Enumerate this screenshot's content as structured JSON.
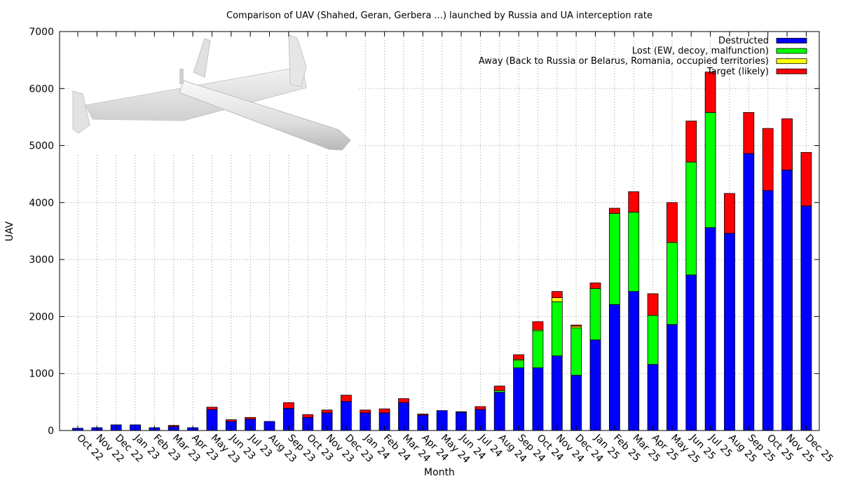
{
  "chart_data": {
    "type": "bar",
    "stacked": true,
    "title": "Comparison of UAV (Shahed, Geran, Gerbera ...) launched by Russia and UA interception rate",
    "xlabel": "Month",
    "ylabel": "UAV",
    "ylim": [
      0,
      7000
    ],
    "yticks": [
      "0",
      "1000",
      "2000",
      "3000",
      "4000",
      "5000",
      "6000",
      "7000"
    ],
    "grid": true,
    "legend_position": "top-right",
    "categories": [
      "Oct 22",
      "Nov 22",
      "Dec 22",
      "Jan 23",
      "Feb 23",
      "Mar 23",
      "Apr 23",
      "May 23",
      "Jun 23",
      "Jul 23",
      "Aug 23",
      "Sep 23",
      "Oct 23",
      "Nov 23",
      "Dec 23",
      "Jan 24",
      "Feb 24",
      "Mar 24",
      "Apr 24",
      "May 24",
      "Jun 24",
      "Jul 24",
      "Aug 24",
      "Sep 24",
      "Oct 24",
      "Nov 24",
      "Dec 24",
      "Jan 25",
      "Feb 25",
      "Mar 25",
      "Apr 25",
      "May 25",
      "Jun 25",
      "Jul 25",
      "Aug 25",
      "Sep 25",
      "Oct 25",
      "Nov 25",
      "Dec 25"
    ],
    "series": [
      {
        "name": "Destructed",
        "color": "#0000ff",
        "values": [
          40,
          50,
          100,
          100,
          50,
          70,
          50,
          370,
          160,
          200,
          160,
          390,
          230,
          310,
          510,
          310,
          310,
          490,
          270,
          350,
          320,
          370,
          670,
          1100,
          1100,
          1310,
          970,
          1590,
          2210,
          2440,
          1160,
          1860,
          2730,
          3560,
          3460,
          4860,
          4210,
          4570,
          3940
        ]
      },
      {
        "name": "Lost (EW, decoy, malfunction)",
        "color": "#00ff00",
        "values": [
          0,
          0,
          0,
          0,
          0,
          0,
          0,
          0,
          0,
          0,
          0,
          0,
          0,
          0,
          0,
          0,
          0,
          0,
          0,
          0,
          0,
          0,
          30,
          130,
          650,
          950,
          830,
          900,
          1600,
          1390,
          860,
          1440,
          1980,
          2020,
          0,
          0,
          0,
          0,
          0
        ]
      },
      {
        "name": "Away (Back to Russia or Belarus, Romania, occupied territories)",
        "color": "#ffff00",
        "values": [
          0,
          0,
          0,
          0,
          0,
          0,
          0,
          0,
          0,
          0,
          0,
          0,
          0,
          0,
          0,
          0,
          0,
          0,
          0,
          0,
          0,
          0,
          0,
          20,
          20,
          70,
          30,
          0,
          0,
          0,
          0,
          0,
          0,
          0,
          0,
          0,
          0,
          0,
          0
        ]
      },
      {
        "name": "Target (likely)",
        "color": "#ff0000",
        "values": [
          0,
          0,
          0,
          0,
          0,
          20,
          0,
          40,
          30,
          30,
          0,
          100,
          50,
          50,
          110,
          50,
          70,
          70,
          20,
          0,
          10,
          50,
          80,
          80,
          140,
          110,
          20,
          100,
          90,
          360,
          380,
          700,
          720,
          710,
          700,
          720,
          1090,
          900,
          940
        ]
      }
    ]
  }
}
